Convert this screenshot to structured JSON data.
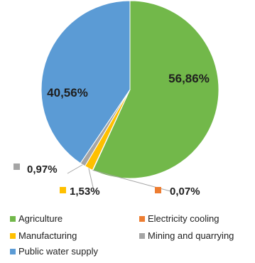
{
  "chart_data": {
    "type": "pie",
    "title": "",
    "unit": "%",
    "slices": [
      {
        "name": "Agriculture",
        "value": 56.86,
        "label": "56,86%",
        "color": "#72b84a"
      },
      {
        "name": "Electricity cooling",
        "value": 0.07,
        "label": "0,07%",
        "color": "#ed7d31"
      },
      {
        "name": "Manufacturing",
        "value": 1.53,
        "label": "1,53%",
        "color": "#ffc000"
      },
      {
        "name": "Mining and quarrying",
        "value": 0.97,
        "label": "0,97%",
        "color": "#a5a5a5"
      },
      {
        "name": "Public water supply",
        "value": 40.56,
        "label": "40,56%",
        "color": "#5b9bd5"
      }
    ],
    "legend": [
      "Agriculture",
      "Electricity cooling",
      "Manufacturing",
      "Mining and quarrying",
      "Public water supply"
    ],
    "legend_position": "bottom"
  }
}
